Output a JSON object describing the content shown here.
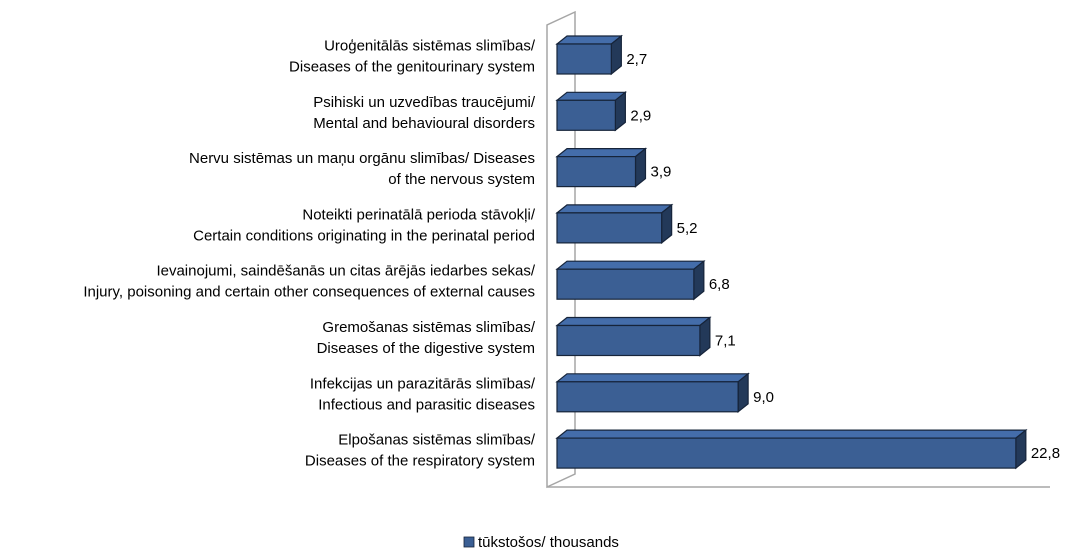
{
  "chart_data": {
    "type": "bar3d_horizontal",
    "categories": [
      [
        "Uroģenitālās sistēmas slimības/",
        "Diseases of the genitourinary system"
      ],
      [
        "Psihiski un uzvedības traucējumi/",
        "Mental and behavioural disorders"
      ],
      [
        "Nervu sistēmas un maņu orgānu slimības/ Diseases",
        "of the nervous system"
      ],
      [
        "Noteikti perinatālā perioda stāvokļi/",
        "Certain conditions originating in the perinatal period"
      ],
      [
        "Ievainojumi, saindēšanās un citas ārējās iedarbes sekas/",
        "Injury, poisoning and certain other consequences of external causes"
      ],
      [
        "Gremošanas sistēmas slimības/",
        "Diseases of the digestive system"
      ],
      [
        "Infekcijas un parazitārās slimības/",
        "Infectious and parasitic diseases"
      ],
      [
        "Elpošanas sistēmas slimības/",
        "Diseases of the respiratory system"
      ]
    ],
    "series": [
      {
        "name": "tūkstošos/ thousands",
        "color": "#3b5f94",
        "values": [
          2.7,
          2.9,
          3.9,
          5.2,
          6.8,
          7.1,
          9.0,
          22.8
        ],
        "value_labels": [
          "2,7",
          "2,9",
          "3,9",
          "5,2",
          "6,8",
          "7,1",
          "9,0",
          "22,8"
        ]
      }
    ],
    "xlim": [
      0,
      24
    ],
    "legend": "bottom"
  }
}
